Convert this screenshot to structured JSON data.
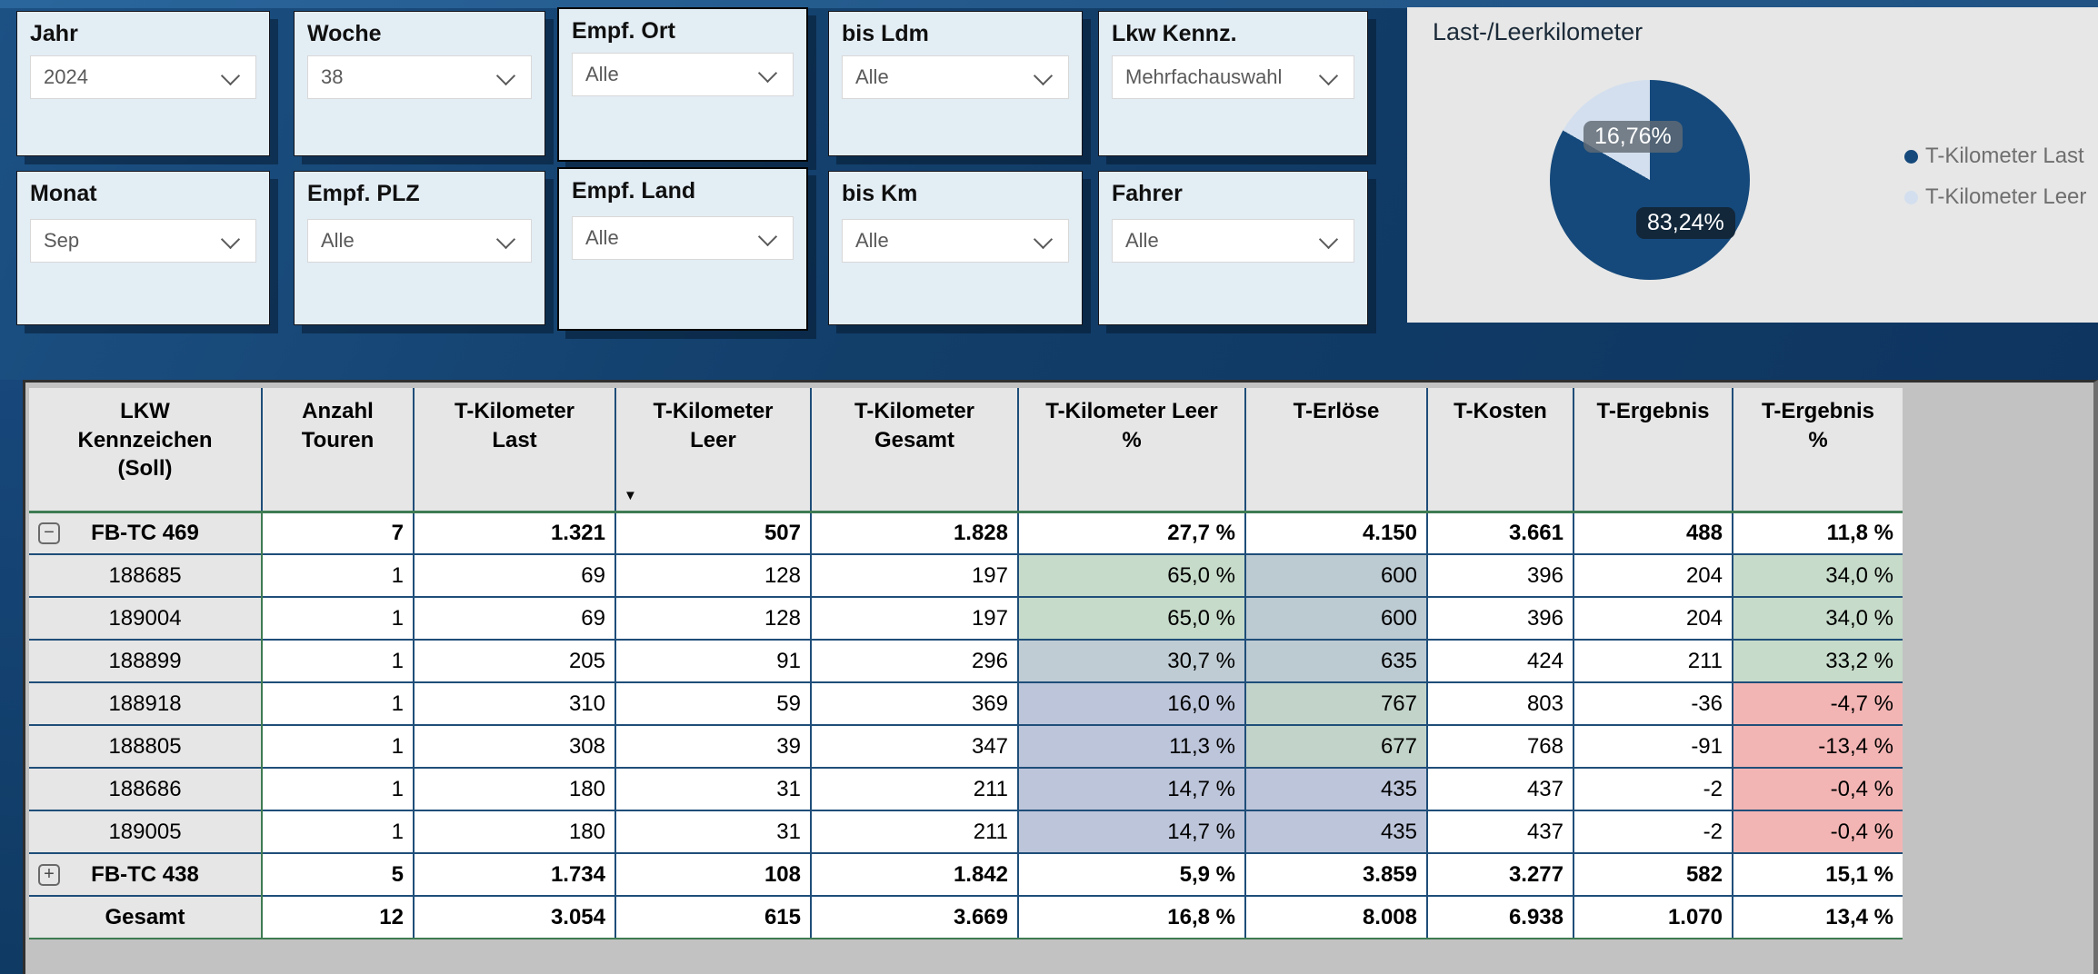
{
  "filters": [
    {
      "label": "Jahr",
      "value": "2024",
      "row": 1,
      "highlight": false
    },
    {
      "label": "Woche",
      "value": "38",
      "row": 1,
      "highlight": false
    },
    {
      "label": "Empf. Ort",
      "value": "Alle",
      "row": 1,
      "highlight": true
    },
    {
      "label": "bis Ldm",
      "value": "Alle",
      "row": 1,
      "highlight": false
    },
    {
      "label": "Lkw Kennz.",
      "value": "Mehrfachauswahl",
      "row": 1,
      "highlight": false
    },
    {
      "label": "Monat",
      "value": "Sep",
      "row": 2,
      "highlight": false
    },
    {
      "label": "Empf. PLZ",
      "value": "Alle",
      "row": 2,
      "highlight": false
    },
    {
      "label": "Empf. Land",
      "value": "Alle",
      "row": 2,
      "highlight": true
    },
    {
      "label": "bis Km",
      "value": "Alle",
      "row": 2,
      "highlight": false
    },
    {
      "label": "Fahrer",
      "value": "Alle",
      "row": 2,
      "highlight": false
    }
  ],
  "chart_data": {
    "type": "pie",
    "title": "Last-/Leerkilometer",
    "slices": [
      {
        "label": "T-Kilometer Last",
        "value": 83.24,
        "display": "83,24%",
        "color": "#15497B"
      },
      {
        "label": "T-Kilometer Leer",
        "value": 16.76,
        "display": "16,76%",
        "color": "#D3DFEE"
      }
    ],
    "legend_position": "right",
    "start_angle_deg": 0
  },
  "table": {
    "columns": [
      {
        "label": "LKW\nKennzeichen\n(Soll)",
        "sort": null
      },
      {
        "label": "Anzahl\nTouren",
        "sort": null
      },
      {
        "label": "T-Kilometer\nLast",
        "sort": null
      },
      {
        "label": "T-Kilometer\nLeer",
        "sort": "desc"
      },
      {
        "label": "T-Kilometer\nGesamt",
        "sort": null
      },
      {
        "label": "T-Kilometer Leer\n%",
        "sort": null
      },
      {
        "label": "T-Erlöse",
        "sort": null
      },
      {
        "label": "T-Kosten",
        "sort": null
      },
      {
        "label": "T-Ergebnis",
        "sort": null
      },
      {
        "label": "T-Ergebnis\n%",
        "sort": null
      }
    ],
    "rows": [
      {
        "label": "FB-TC 469",
        "icon": "minus",
        "style": "group",
        "values": [
          "7",
          "1.321",
          "507",
          "1.828",
          "27,7 %",
          "4.150",
          "3.661",
          "488",
          "11,8 %"
        ],
        "bg": [
          null,
          null,
          null,
          null,
          null,
          null,
          null,
          null,
          null,
          null
        ]
      },
      {
        "label": "188685",
        "icon": null,
        "style": "detail",
        "values": [
          "1",
          "69",
          "128",
          "197",
          "65,0 %",
          "600",
          "396",
          "204",
          "34,0 %"
        ],
        "bg": [
          null,
          null,
          null,
          null,
          null,
          "#C6DBC9",
          "#BCCAD2",
          null,
          null,
          "#C6DBC9"
        ]
      },
      {
        "label": "189004",
        "icon": null,
        "style": "detail",
        "values": [
          "1",
          "69",
          "128",
          "197",
          "65,0 %",
          "600",
          "396",
          "204",
          "34,0 %"
        ],
        "bg": [
          null,
          null,
          null,
          null,
          null,
          "#C6DBC9",
          "#BCCAD2",
          null,
          null,
          "#C6DBC9"
        ]
      },
      {
        "label": "188899",
        "icon": null,
        "style": "detail",
        "values": [
          "1",
          "205",
          "91",
          "296",
          "30,7 %",
          "635",
          "424",
          "211",
          "33,2 %"
        ],
        "bg": [
          null,
          null,
          null,
          null,
          null,
          "#BFCCD4",
          "#BCCAD2",
          null,
          null,
          "#C6DBC9"
        ]
      },
      {
        "label": "188918",
        "icon": null,
        "style": "detail",
        "values": [
          "1",
          "310",
          "59",
          "369",
          "16,0 %",
          "767",
          "803",
          "-36",
          "-4,7 %"
        ],
        "bg": [
          null,
          null,
          null,
          null,
          null,
          "#BDC5DA",
          "#C2D4C9",
          null,
          null,
          "#F3B5B4"
        ]
      },
      {
        "label": "188805",
        "icon": null,
        "style": "detail",
        "values": [
          "1",
          "308",
          "39",
          "347",
          "11,3 %",
          "677",
          "768",
          "-91",
          "-13,4 %"
        ],
        "bg": [
          null,
          null,
          null,
          null,
          null,
          "#BDC5DA",
          "#C2D4C9",
          null,
          null,
          "#F3B5B4"
        ]
      },
      {
        "label": "188686",
        "icon": null,
        "style": "detail",
        "values": [
          "1",
          "180",
          "31",
          "211",
          "14,7 %",
          "435",
          "437",
          "-2",
          "-0,4 %"
        ],
        "bg": [
          null,
          null,
          null,
          null,
          null,
          "#BDC5DA",
          "#BDC5DA",
          null,
          null,
          "#F3B5B4"
        ]
      },
      {
        "label": "189005",
        "icon": null,
        "style": "detail",
        "values": [
          "1",
          "180",
          "31",
          "211",
          "14,7 %",
          "435",
          "437",
          "-2",
          "-0,4 %"
        ],
        "bg": [
          null,
          null,
          null,
          null,
          null,
          "#BDC5DA",
          "#BDC5DA",
          null,
          null,
          "#F3B5B4"
        ]
      },
      {
        "label": "FB-TC 438",
        "icon": "plus",
        "style": "group",
        "values": [
          "5",
          "1.734",
          "108",
          "1.842",
          "5,9 %",
          "3.859",
          "3.277",
          "582",
          "15,1 %"
        ],
        "bg": [
          null,
          null,
          null,
          null,
          null,
          null,
          null,
          null,
          null,
          null
        ]
      },
      {
        "label": "Gesamt",
        "icon": null,
        "style": "total",
        "values": [
          "12",
          "3.054",
          "615",
          "3.669",
          "16,8 %",
          "8.008",
          "6.938",
          "1.070",
          "13,4 %"
        ],
        "bg": [
          null,
          null,
          null,
          null,
          null,
          null,
          null,
          null,
          null,
          null
        ]
      }
    ]
  },
  "colors": {
    "border_navy": "#1F4E79",
    "border_green": "#3E7B52",
    "pie_dark": "#15497B",
    "pie_light": "#D3DFEE",
    "cond_green": "#C6DBC9",
    "cond_bluegray": "#BCCAD2",
    "cond_palegreen": "#C2D4C9",
    "cond_lavender": "#BDC5DA",
    "cond_pink": "#F3B5B4",
    "card_bg": "#E3EDF4",
    "panel_bg": "#E7E7E7",
    "band_navy": "#123E6A"
  }
}
